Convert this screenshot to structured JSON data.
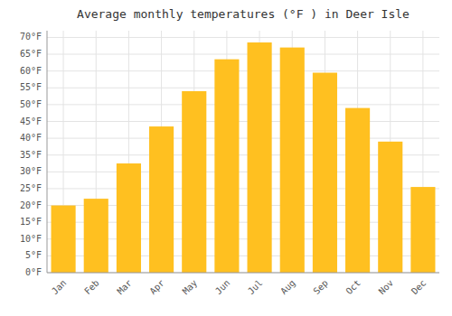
{
  "chart_data": {
    "type": "bar",
    "title": "Average monthly temperatures (°F ) in Deer Isle",
    "categories": [
      "Jan",
      "Feb",
      "Mar",
      "Apr",
      "May",
      "Jun",
      "Jul",
      "Aug",
      "Sep",
      "Oct",
      "Nov",
      "Dec"
    ],
    "values": [
      20,
      22,
      32.5,
      43.5,
      54,
      63.5,
      68.5,
      67,
      59.5,
      49,
      39,
      25.5
    ],
    "color": "#FFC020",
    "ylim": [
      0,
      72
    ],
    "yticks": [
      {
        "value": 0,
        "label": "0°F"
      },
      {
        "value": 5,
        "label": "5°F"
      },
      {
        "value": 10,
        "label": "10°F"
      },
      {
        "value": 15,
        "label": "15°F"
      },
      {
        "value": 20,
        "label": "20°F"
      },
      {
        "value": 25,
        "label": "25°F"
      },
      {
        "value": 30,
        "label": "30°F"
      },
      {
        "value": 35,
        "label": "35°F"
      },
      {
        "value": 40,
        "label": "40°F"
      },
      {
        "value": 45,
        "label": "45°F"
      },
      {
        "value": 50,
        "label": "50°F"
      },
      {
        "value": 55,
        "label": "55°F"
      },
      {
        "value": 60,
        "label": "60°F"
      },
      {
        "value": 65,
        "label": "65°F"
      },
      {
        "value": 70,
        "label": "70°F"
      }
    ],
    "grid": true
  }
}
